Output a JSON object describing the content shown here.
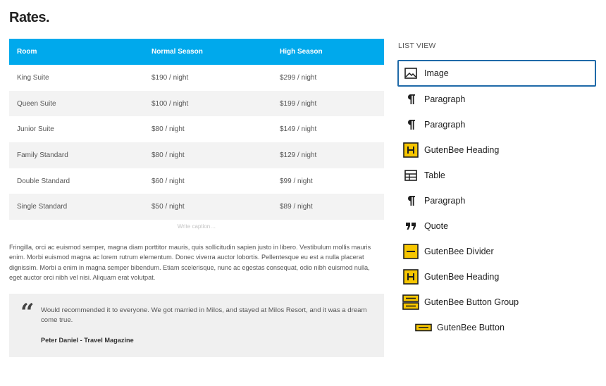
{
  "page": {
    "title": "Rates."
  },
  "table": {
    "headers": [
      "Room",
      "Normal Season",
      "High Season"
    ],
    "rows": [
      [
        "King Suite",
        "$190 / night",
        "$299 / night"
      ],
      [
        "Queen Suite",
        "$100 / night",
        "$199 / night"
      ],
      [
        "Junior Suite",
        "$80 / night",
        "$149 / night"
      ],
      [
        "Family Standard",
        "$80 / night",
        "$129 / night"
      ],
      [
        "Double Standard",
        "$60 / night",
        "$99 / night"
      ],
      [
        "Single Standard",
        "$50 / night",
        "$89 / night"
      ]
    ],
    "caption_placeholder": "Write caption…",
    "header_color": "#00a9ec"
  },
  "paragraph": {
    "text": "Fringilla, orci ac euismod semper, magna diam porttitor mauris, quis sollicitudin sapien justo in libero. Vestibulum mollis mauris enim. Morbi euismod magna ac lorem rutrum elementum. Donec viverra auctor lobortis. Pellentesque eu est a nulla placerat dignissim. Morbi a enim in magna semper bibendum. Etiam scelerisque, nunc ac egestas consequat, odio nibh euismod nulla, eget auctor orci nibh vel nisi. Aliquam erat volutpat."
  },
  "quote": {
    "mark": "“",
    "text": "Would recommended it to everyone. We got married in Milos, and stayed at Milos Resort, and it was a dream come true.",
    "citation": "Peter Daniel - Travel Magazine"
  },
  "list_view": {
    "title": "LIST VIEW",
    "accent_color": "#f7c600",
    "selected_border_color": "#1f6aa8",
    "items": [
      {
        "label": "Image",
        "icon": "image-icon",
        "selected": true,
        "child": false
      },
      {
        "label": "Paragraph",
        "icon": "paragraph-icon",
        "selected": false,
        "child": false
      },
      {
        "label": "Paragraph",
        "icon": "paragraph-icon",
        "selected": false,
        "child": false
      },
      {
        "label": "GutenBee Heading",
        "icon": "gutenbee-heading-icon",
        "selected": false,
        "child": false
      },
      {
        "label": "Table",
        "icon": "table-icon",
        "selected": false,
        "child": false
      },
      {
        "label": "Paragraph",
        "icon": "paragraph-icon",
        "selected": false,
        "child": false
      },
      {
        "label": "Quote",
        "icon": "quote-icon",
        "selected": false,
        "child": false
      },
      {
        "label": "GutenBee Divider",
        "icon": "gutenbee-divider-icon",
        "selected": false,
        "child": false
      },
      {
        "label": "GutenBee Heading",
        "icon": "gutenbee-heading-icon",
        "selected": false,
        "child": false
      },
      {
        "label": "GutenBee Button Group",
        "icon": "gutenbee-button-group-icon",
        "selected": false,
        "child": false
      },
      {
        "label": "GutenBee Button",
        "icon": "gutenbee-button-icon",
        "selected": false,
        "child": true
      }
    ]
  }
}
